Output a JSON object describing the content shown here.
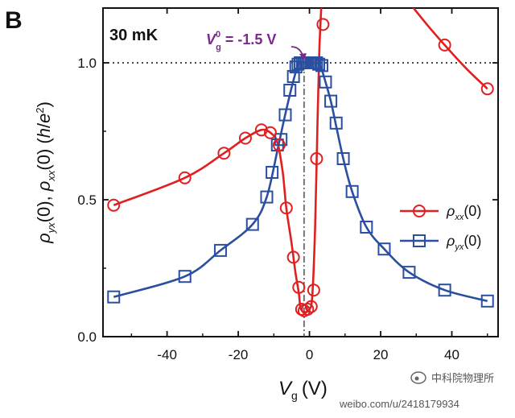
{
  "panel_label": "B",
  "watermark": {
    "brand": "中科院物理所",
    "url": "weibo.com/u/2418179934"
  },
  "chart_data": {
    "type": "line",
    "temperature_label": "30 mK",
    "annotation": {
      "symbol": "V",
      "sup": "0",
      "sub": "g",
      "text": " = -1.5 V",
      "x": -1.5,
      "color": "#7b2a8c"
    },
    "xlabel": {
      "symbol": "V",
      "sub": "g",
      "unit": "(V)"
    },
    "ylabel": {
      "parts": [
        "ρ",
        "yx",
        "(0), ",
        "ρ",
        "xx",
        "(0) (",
        "h",
        "/",
        "e",
        "2",
        ")"
      ]
    },
    "xlim": [
      -58,
      53
    ],
    "ylim": [
      0.0,
      1.2
    ],
    "xticks": [
      -40,
      -20,
      0,
      20,
      40
    ],
    "yticks": [
      0.0,
      0.5,
      1.0
    ],
    "ytick_labels": [
      "0.0",
      "0.5",
      "1.0"
    ],
    "reference_hline": 1.0,
    "series": [
      {
        "name": "ρxx(0)",
        "legend_symbol": "ρ",
        "legend_sub": "xx",
        "legend_suffix": "(0)",
        "color": "#e02020",
        "marker": "circle",
        "x": [
          -55,
          -35,
          -24,
          -18,
          -13.5,
          -11,
          -8.5,
          -6.5,
          -4.5,
          -3,
          -2.2,
          -1.5,
          -0.5,
          0.5,
          1.2,
          2.0,
          3.8
        ],
        "y": [
          0.48,
          0.58,
          0.67,
          0.725,
          0.755,
          0.745,
          0.7,
          0.47,
          0.29,
          0.18,
          0.1,
          0.095,
          0.1,
          0.11,
          0.17,
          0.65,
          1.14
        ],
        "curve_x": [
          -55,
          -35,
          -24,
          -18,
          -13.5,
          -11,
          -9,
          -7.5,
          -6.5,
          -5,
          -4,
          -3,
          -2.5,
          -1.5,
          0,
          0.8,
          1.6,
          2.3,
          2.8,
          3.3
        ],
        "curve_y": [
          0.48,
          0.58,
          0.67,
          0.725,
          0.755,
          0.745,
          0.71,
          0.6,
          0.47,
          0.34,
          0.24,
          0.16,
          0.105,
          0.09,
          0.1,
          0.15,
          0.4,
          0.8,
          1.05,
          1.2
        ],
        "right_branch_x": [
          38,
          50
        ],
        "right_branch_y": [
          1.065,
          0.905
        ],
        "right_curve_x": [
          28,
          33,
          38,
          44,
          50
        ],
        "right_curve_y": [
          1.22,
          1.14,
          1.065,
          0.98,
          0.905
        ]
      },
      {
        "name": "ρyx(0)",
        "legend_symbol": "ρ",
        "legend_sub": "yx",
        "legend_suffix": "(0)",
        "color": "#2b4fa0",
        "marker": "square",
        "x": [
          -55,
          -35,
          -25,
          -16,
          -12,
          -10.5,
          -9,
          -8,
          -6.8,
          -5.5,
          -4.5,
          -3.8,
          -3.2,
          -2.6,
          -2,
          -1.5,
          -1,
          -0.5,
          0,
          0.5,
          1,
          1.5,
          2,
          2.6,
          3.5,
          4.5,
          6,
          7.5,
          9.5,
          12,
          16,
          21,
          28,
          38,
          50
        ],
        "y": [
          0.145,
          0.22,
          0.315,
          0.41,
          0.51,
          0.6,
          0.7,
          0.72,
          0.81,
          0.9,
          0.95,
          0.985,
          0.995,
          1.0,
          1.0,
          1.0,
          1.0,
          1.0,
          1.0,
          1.0,
          1.0,
          1.0,
          1.0,
          0.995,
          0.99,
          0.93,
          0.86,
          0.78,
          0.65,
          0.53,
          0.4,
          0.32,
          0.235,
          0.17,
          0.13
        ],
        "curve_x": [
          -55,
          -35,
          -25,
          -16,
          -12,
          -9,
          -7,
          -5,
          -3.5,
          -2.5,
          1.5,
          3,
          4.5,
          6,
          7.5,
          9.5,
          12,
          16,
          21,
          28,
          38,
          50
        ],
        "curve_y": [
          0.145,
          0.22,
          0.315,
          0.41,
          0.51,
          0.68,
          0.8,
          0.91,
          0.98,
          1.0,
          1.0,
          0.99,
          0.93,
          0.86,
          0.77,
          0.65,
          0.53,
          0.4,
          0.32,
          0.235,
          0.17,
          0.13
        ]
      }
    ]
  }
}
